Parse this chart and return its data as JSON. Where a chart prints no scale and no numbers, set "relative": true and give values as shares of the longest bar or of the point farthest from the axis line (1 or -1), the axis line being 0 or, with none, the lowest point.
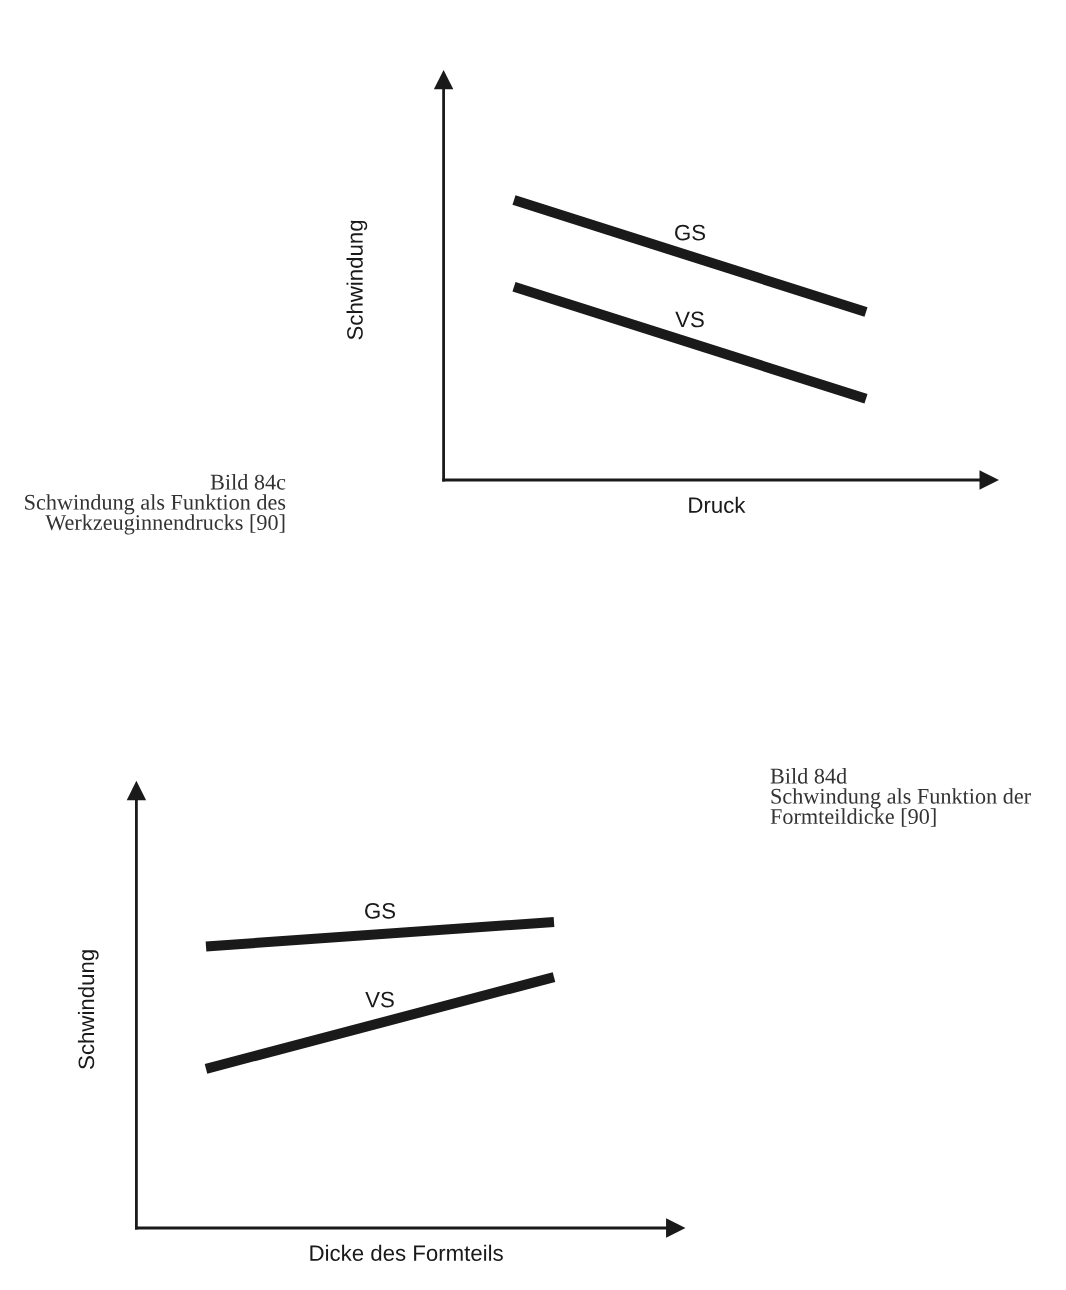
{
  "chart_data": [
    {
      "type": "line",
      "xlabel": "Druck",
      "ylabel": "Schwindung",
      "categories": [
        null,
        null
      ],
      "relative": true,
      "annotations": [
        "Bild 84c\nSchwindung als Funktion des\nWerkzeuginnendrucks [90]"
      ],
      "series": [
        {
          "name": "GS",
          "color": "#1a1a1a",
          "values": [
            1,
            0.6
          ]
        },
        {
          "name": "VS",
          "color": "#1a1a1a",
          "values": [
            0.69,
            0.29
          ]
        }
      ]
    },
    {
      "type": "line",
      "xlabel": "Dicke des Formteils",
      "ylabel": "Schwindung",
      "categories": [
        null,
        null
      ],
      "relative": true,
      "annotations": [
        "Bild 84d\nSchwindung als Funktion der\nFormteildicke [90]"
      ],
      "series": [
        {
          "name": "GS",
          "color": "#1a1a1a",
          "values": [
            0.92,
            1
          ]
        },
        {
          "name": "VS",
          "color": "#1a1a1a",
          "values": [
            0.52,
            0.82
          ]
        }
      ]
    }
  ]
}
